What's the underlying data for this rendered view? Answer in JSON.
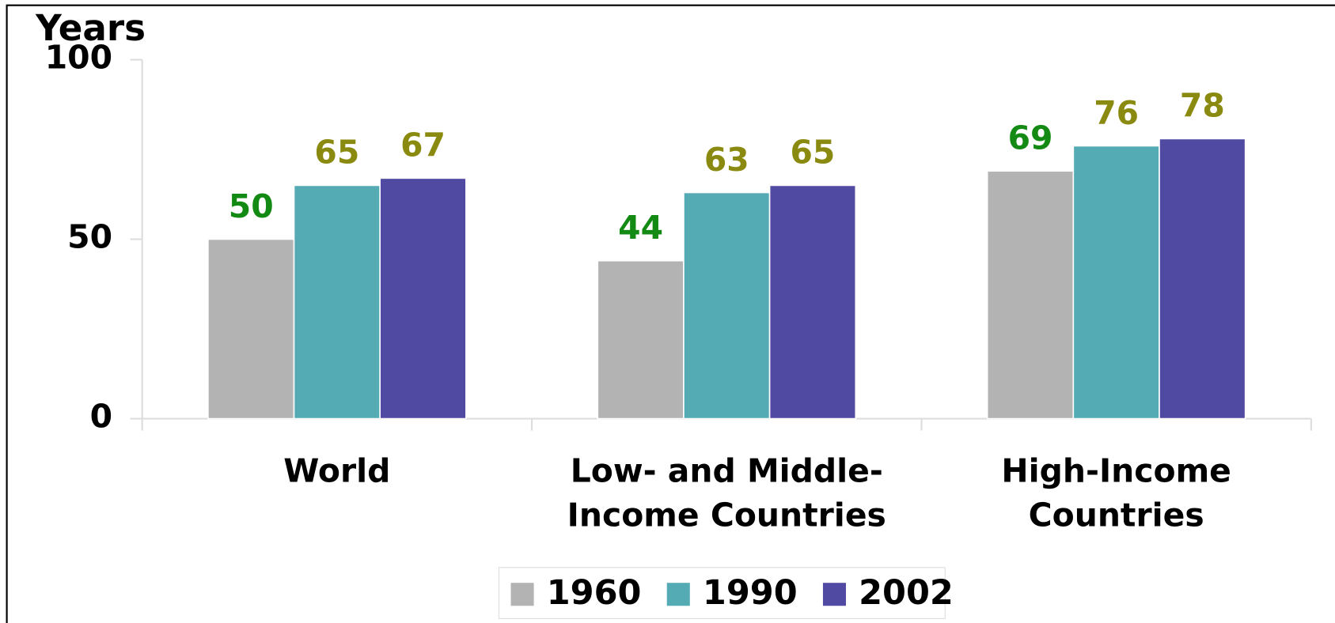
{
  "chart_data": {
    "type": "bar",
    "title": "Years",
    "categories": [
      [
        "World"
      ],
      [
        "Low- and Middle-",
        "Income Countries"
      ],
      [
        "High-Income",
        "Countries"
      ]
    ],
    "series": [
      {
        "name": "1960",
        "color": "#b3b3b3",
        "label_color": "#138a13",
        "values": [
          50,
          44,
          69
        ]
      },
      {
        "name": "1990",
        "color": "#55abb3",
        "label_color": "#8a8a10",
        "values": [
          65,
          63,
          76
        ]
      },
      {
        "name": "2002",
        "color": "#514aa3",
        "label_color": "#8a8a10",
        "values": [
          67,
          65,
          78
        ]
      }
    ],
    "ylim": [
      0,
      100
    ],
    "yticks": [
      0,
      50,
      100
    ],
    "grid": false,
    "legend": "bottom"
  }
}
